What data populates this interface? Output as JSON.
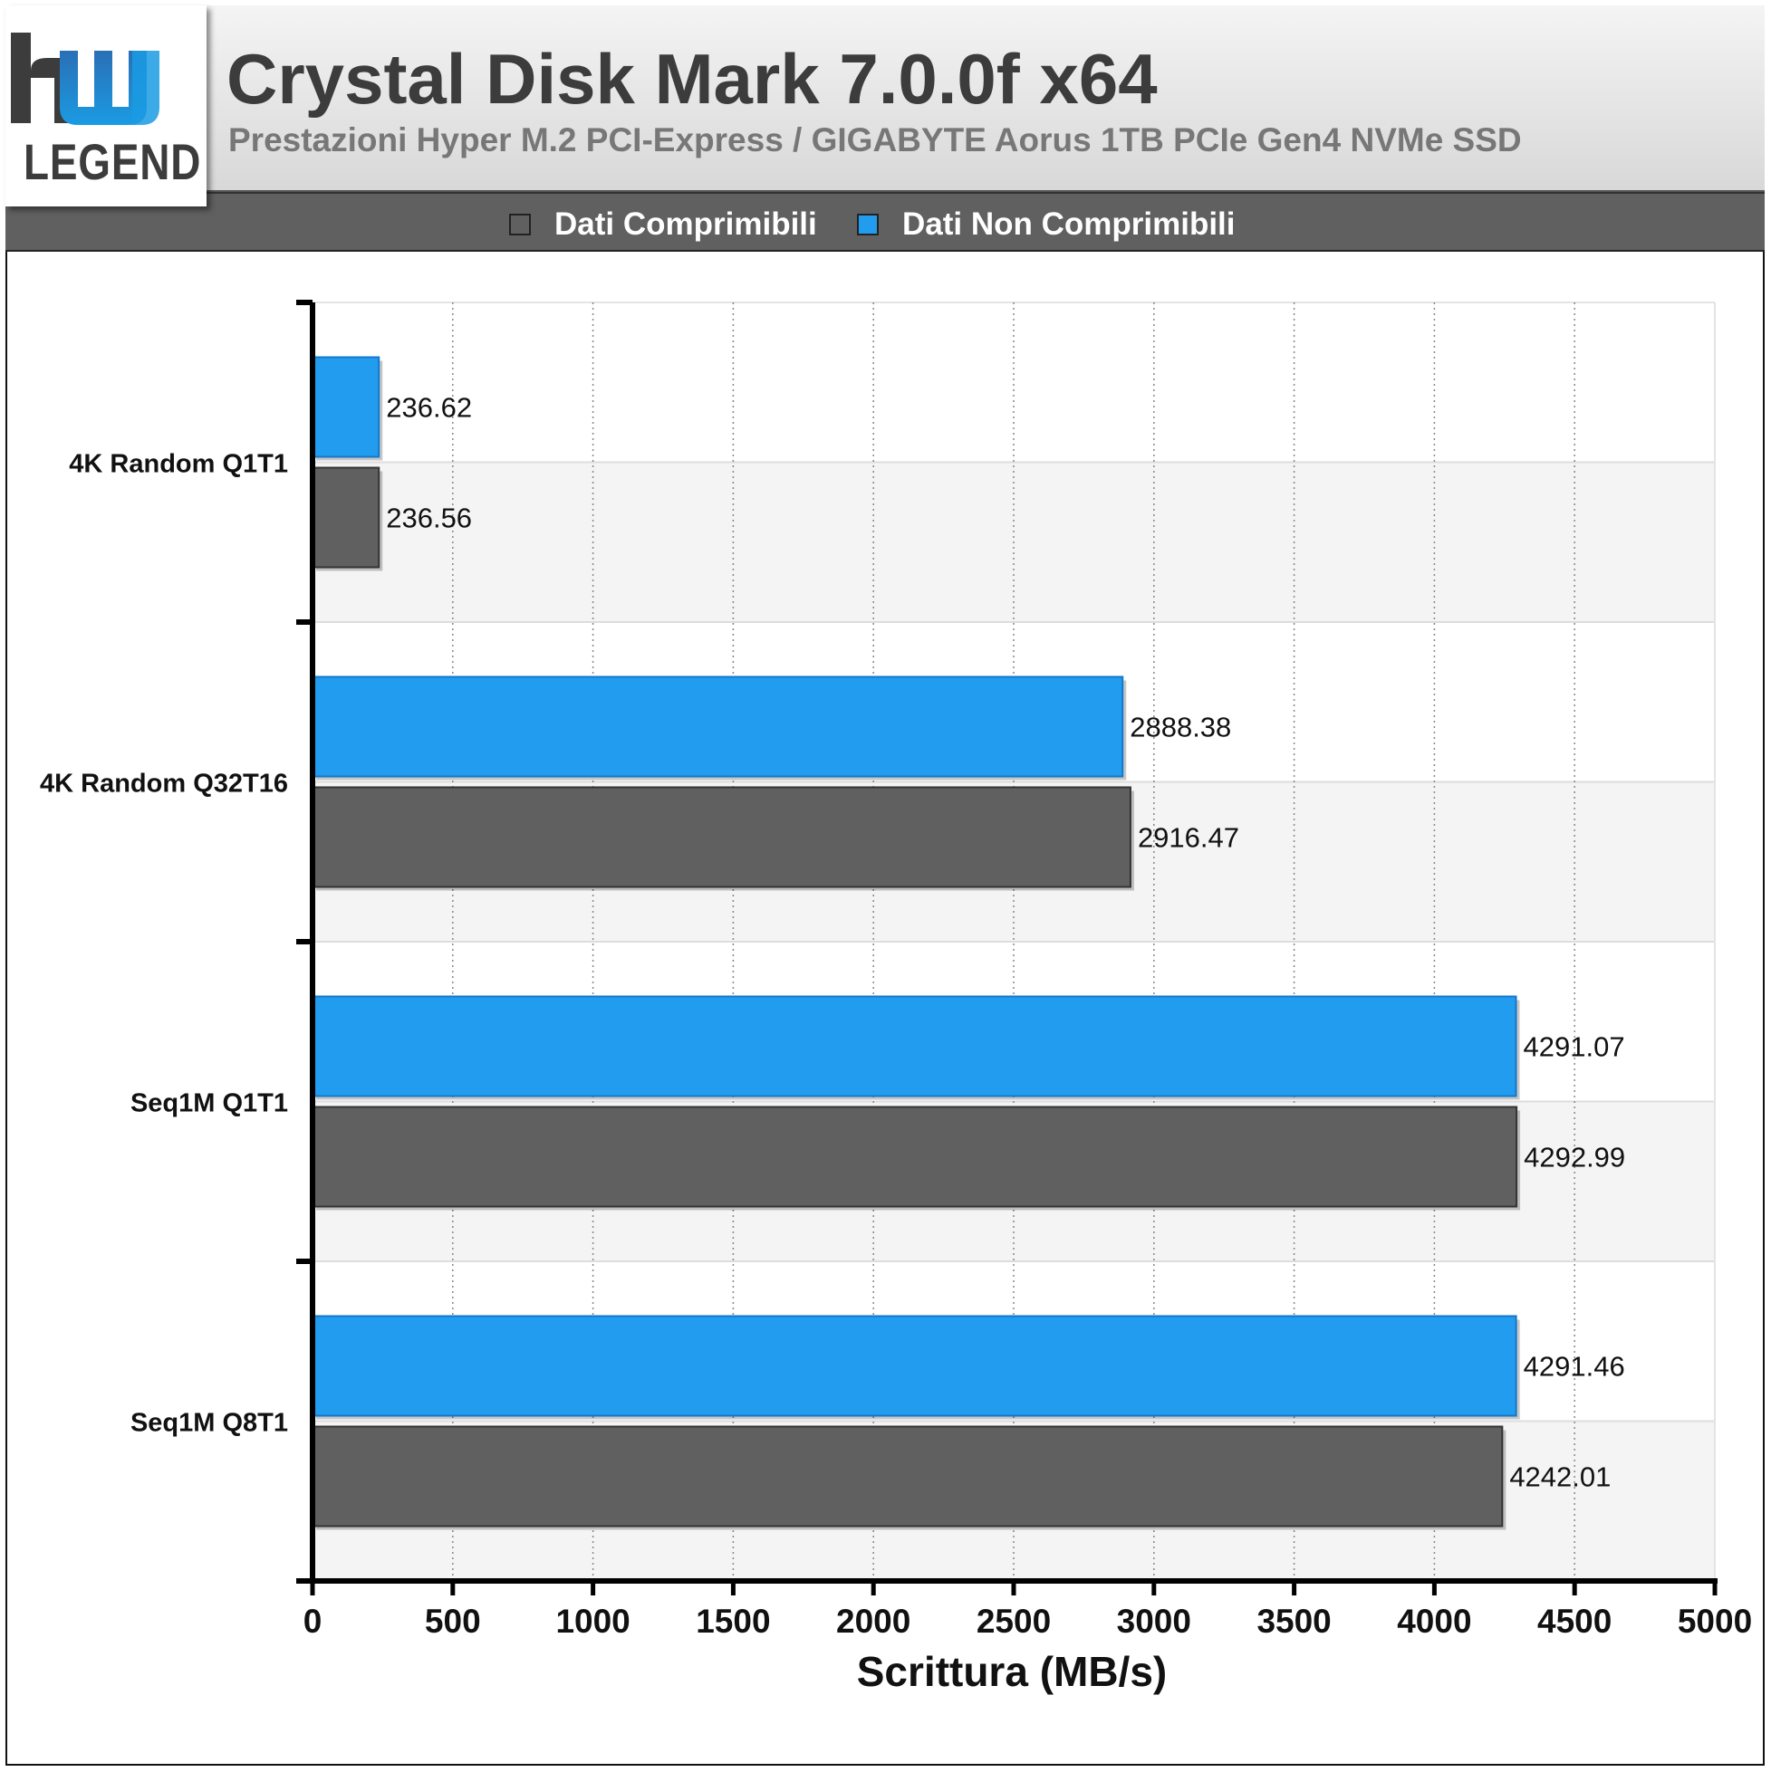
{
  "header": {
    "title": "Crystal Disk Mark 7.0.0f x64",
    "subtitle": "Prestazioni Hyper M.2 PCI-Express / GIGABYTE Aorus 1TB PCIe Gen4 NVMe SSD",
    "logo_text": "hw LEGEND"
  },
  "colors": {
    "compressible": "#606060",
    "non_compressible": "#229cee",
    "band": "#f4f4f4",
    "header_bg": "#dcdcdc",
    "legend_bg": "#606060"
  },
  "chart_data": {
    "type": "bar",
    "orientation": "horizontal",
    "categories": [
      "4K Random Q1T1",
      "4K Random Q32T16",
      "Seq1M Q1T1",
      "Seq1M Q8T1"
    ],
    "series": [
      {
        "name": "Dati Non Comprimibili",
        "color": "#229cee",
        "values": [
          236.62,
          2888.38,
          4291.07,
          4291.46
        ],
        "labels": [
          "236.62",
          "2888.38",
          "4291.07",
          "4291.46"
        ]
      },
      {
        "name": "Dati Comprimibili",
        "color": "#606060",
        "values": [
          236.56,
          2916.47,
          4292.99,
          4242.01
        ],
        "labels": [
          "236.56",
          "2916.47",
          "4292.99",
          "4242.01"
        ]
      }
    ],
    "legend": [
      "Dati Comprimibili",
      "Dati Non Comprimibili"
    ],
    "legend_placement": "top",
    "xlabel": "Scrittura (MB/s)",
    "ylabel": "",
    "xlim": [
      0,
      5000
    ],
    "xticks": [
      "0",
      "500",
      "1000",
      "1500",
      "2000",
      "2500",
      "3000",
      "3500",
      "4000",
      "4500",
      "5000"
    ],
    "grid": true
  }
}
